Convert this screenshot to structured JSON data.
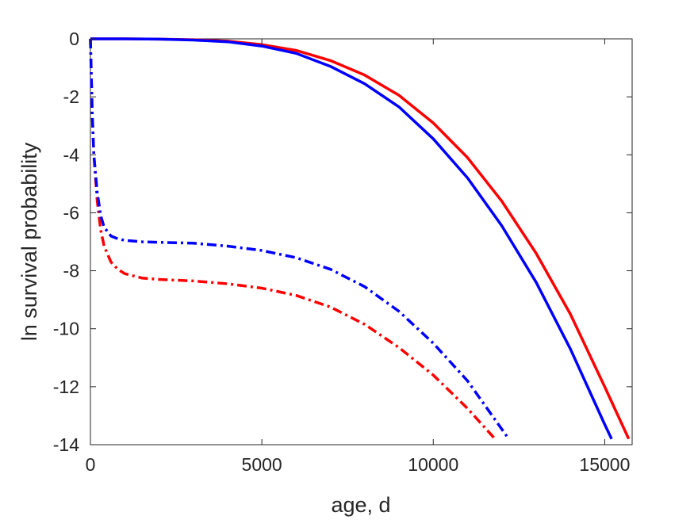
{
  "chart_data": {
    "type": "line",
    "title": "",
    "xlabel": "age, d",
    "ylabel": "ln survival probability",
    "xlim": [
      0,
      15800
    ],
    "ylim": [
      -14,
      0
    ],
    "xticks": [
      0,
      5000,
      10000,
      15000
    ],
    "yticks": [
      0,
      -2,
      -4,
      -6,
      -8,
      -10,
      -12,
      -14
    ],
    "grid": false,
    "legend": "none",
    "series": [
      {
        "color": "#ff0000",
        "style": "solid",
        "x": [
          0,
          100,
          1000,
          2000,
          3000,
          4000,
          5000,
          6000,
          7000,
          8000,
          9000,
          10000,
          11000,
          12000,
          13000,
          14000,
          15000,
          15700
        ],
        "y": [
          0,
          0,
          0,
          -0.01,
          -0.03,
          -0.08,
          -0.2,
          -0.4,
          -0.75,
          -1.25,
          -1.95,
          -2.9,
          -4.1,
          -5.6,
          -7.4,
          -9.5,
          -12,
          -13.8
        ]
      },
      {
        "color": "#0000ff",
        "style": "solid",
        "x": [
          0,
          100,
          1000,
          2000,
          3000,
          4000,
          5000,
          6000,
          7000,
          8000,
          9000,
          10000,
          11000,
          12000,
          13000,
          14000,
          15000,
          15200
        ],
        "y": [
          0,
          0,
          0,
          -0.01,
          -0.04,
          -0.1,
          -0.25,
          -0.5,
          -0.95,
          -1.55,
          -2.35,
          -3.45,
          -4.8,
          -6.45,
          -8.4,
          -10.7,
          -13.3,
          -13.8
        ]
      },
      {
        "color": "#ff0000",
        "style": "dashdot",
        "x": [
          0,
          50,
          100,
          200,
          300,
          400,
          600,
          800,
          1000,
          1500,
          2000,
          3000,
          4000,
          5000,
          6000,
          7000,
          8000,
          9000,
          10000,
          11000,
          11800
        ],
        "y": [
          0,
          -2.5,
          -4.0,
          -5.6,
          -6.6,
          -7.15,
          -7.7,
          -7.95,
          -8.1,
          -8.25,
          -8.3,
          -8.35,
          -8.45,
          -8.6,
          -8.85,
          -9.25,
          -9.85,
          -10.65,
          -11.6,
          -12.75,
          -13.8
        ]
      },
      {
        "color": "#0000ff",
        "style": "dashdot",
        "x": [
          0,
          50,
          100,
          200,
          300,
          400,
          600,
          800,
          1000,
          1500,
          2000,
          3000,
          4000,
          5000,
          6000,
          7000,
          8000,
          9000,
          10000,
          11000,
          12200
        ],
        "y": [
          0,
          -2.5,
          -4.0,
          -5.3,
          -6.1,
          -6.5,
          -6.8,
          -6.9,
          -6.95,
          -7.0,
          -7.02,
          -7.05,
          -7.15,
          -7.3,
          -7.55,
          -7.95,
          -8.55,
          -9.4,
          -10.5,
          -11.8,
          -13.8
        ]
      }
    ]
  }
}
